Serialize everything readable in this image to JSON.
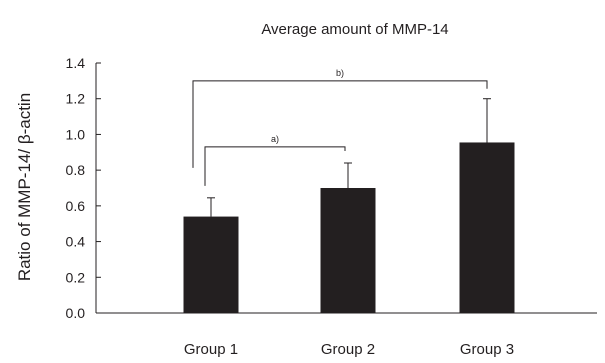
{
  "chart_data": {
    "type": "bar",
    "title": "Average amount of MMP-14",
    "xlabel": "",
    "ylabel": "Ratio of MMP-14/ β-actin",
    "categories": [
      "Group 1",
      "Group 2",
      "Group 3"
    ],
    "values": [
      0.54,
      0.7,
      0.955
    ],
    "error_upper": [
      0.645,
      0.84,
      1.2
    ],
    "ylim": [
      0,
      1.4
    ],
    "yticks": [
      0.0,
      0.2,
      0.4,
      0.6,
      0.8,
      1.0,
      1.2,
      1.4
    ],
    "ytick_labels": [
      "0.0",
      "0.2",
      "0.4",
      "0.6",
      "0.8",
      "1.0",
      "1.2",
      "1.4"
    ],
    "bar_color": "#231f20",
    "grid": false,
    "legend": "none",
    "significance": [
      {
        "label": "a)",
        "from": "Group 1",
        "to": "Group 2",
        "level": 0.93
      },
      {
        "label": "b)",
        "from": "Group 1",
        "to": "Group 3",
        "level": 1.3
      }
    ]
  }
}
